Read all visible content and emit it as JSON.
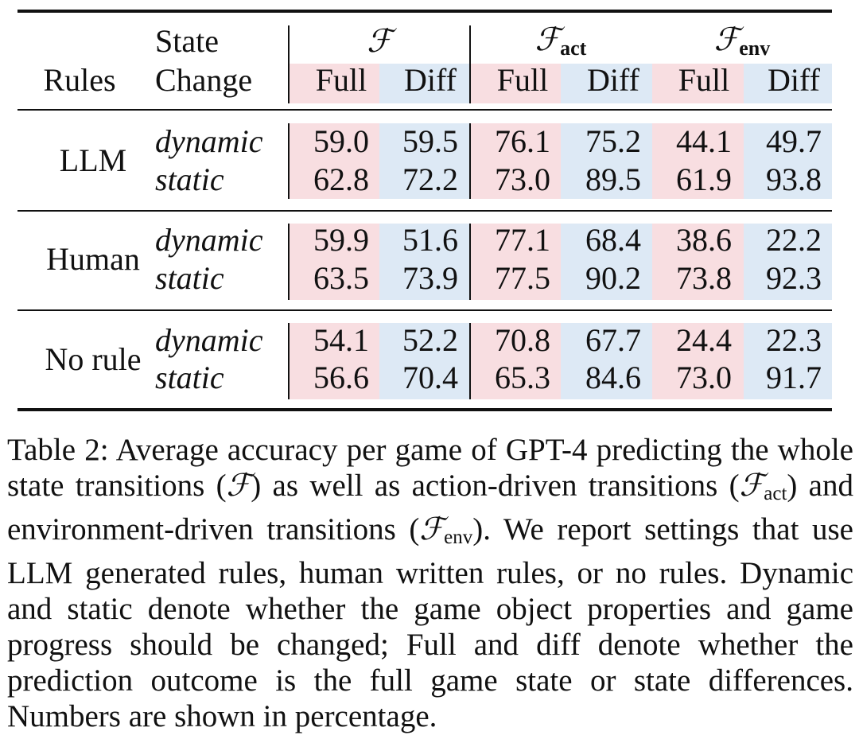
{
  "table": {
    "header": {
      "rules": "Rules",
      "state": "State",
      "change": "Change",
      "groups": [
        {
          "symbol": "ℱ"
        },
        {
          "symbol": "ℱ",
          "sub": "act"
        },
        {
          "symbol": "ℱ",
          "sub": "env"
        }
      ],
      "subcolumns": [
        "Full",
        "Diff",
        "Full",
        "Diff",
        "Full",
        "Diff"
      ]
    },
    "groups": [
      {
        "rule": "LLM",
        "rows": [
          {
            "state": "dynamic",
            "values": [
              59.0,
              59.5,
              76.1,
              75.2,
              44.1,
              49.7
            ],
            "value_labels": [
              "59.0",
              "59.5",
              "76.1",
              "75.2",
              "44.1",
              "49.7"
            ]
          },
          {
            "state": "static",
            "values": [
              62.8,
              72.2,
              73.0,
              89.5,
              61.9,
              93.8
            ],
            "value_labels": [
              "62.8",
              "72.2",
              "73.0",
              "89.5",
              "61.9",
              "93.8"
            ]
          }
        ]
      },
      {
        "rule": "Human",
        "rows": [
          {
            "state": "dynamic",
            "values": [
              59.9,
              51.6,
              77.1,
              68.4,
              38.6,
              22.2
            ],
            "value_labels": [
              "59.9",
              "51.6",
              "77.1",
              "68.4",
              "38.6",
              "22.2"
            ]
          },
          {
            "state": "static",
            "values": [
              63.5,
              73.9,
              77.5,
              90.2,
              73.8,
              92.3
            ],
            "value_labels": [
              "63.5",
              "73.9",
              "77.5",
              "90.2",
              "73.8",
              "92.3"
            ]
          }
        ]
      },
      {
        "rule": "No rule",
        "rows": [
          {
            "state": "dynamic",
            "values": [
              54.1,
              52.2,
              70.8,
              67.7,
              24.4,
              22.3
            ],
            "value_labels": [
              "54.1",
              "52.2",
              "70.8",
              "67.7",
              "24.4",
              "22.3"
            ]
          },
          {
            "state": "static",
            "values": [
              56.6,
              70.4,
              65.3,
              84.6,
              73.0,
              91.7
            ],
            "value_labels": [
              "56.6",
              "70.4",
              "65.3",
              "84.6",
              "73.0",
              "91.7"
            ]
          }
        ]
      }
    ]
  },
  "caption": {
    "label": "Table 2:",
    "segments": [
      {
        "text": "Average accuracy per game of GPT-4 predicting the whole state transitions ("
      },
      {
        "text": "ℱ"
      },
      {
        "text": ") as well as action-driven transitions ("
      },
      {
        "text": "ℱ",
        "sub": "act"
      },
      {
        "text": ") and environment-driven transitions ("
      },
      {
        "text": "ℱ",
        "sub": "env"
      },
      {
        "text": "). We report settings that use LLM generated rules, human written rules, or no rules. Dynamic and static denote whether the game object properties and game progress should be changed; Full and diff denote whether the prediction outcome is the full game state or state differences. Numbers are shown in percentage."
      }
    ]
  }
}
